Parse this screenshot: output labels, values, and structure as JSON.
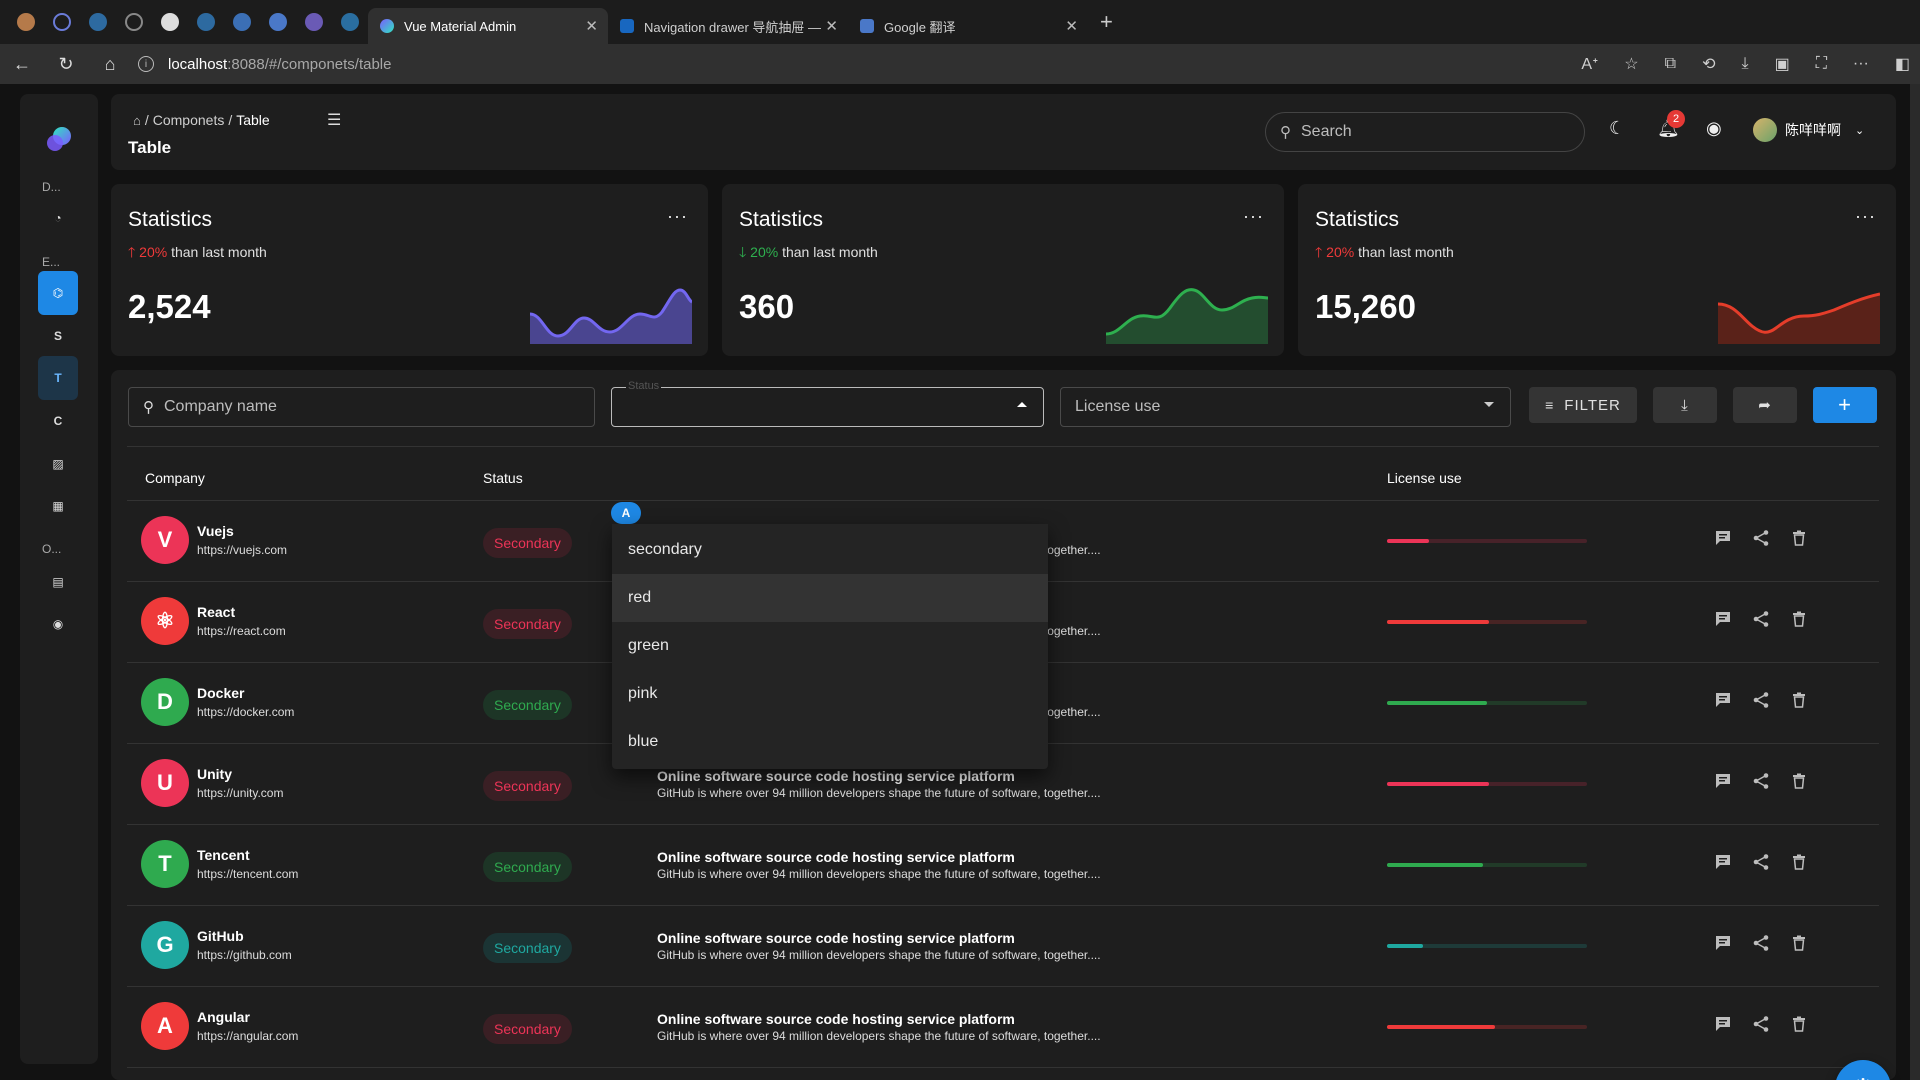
{
  "browser": {
    "tabs": [
      {
        "title": "Vue Material Admin",
        "active": true
      },
      {
        "title": "Navigation drawer 导航抽屉 —",
        "active": false
      },
      {
        "title": "Google 翻译",
        "active": false
      }
    ],
    "url_host": "localhost",
    "url_rest": ":8088/#/componets/table"
  },
  "rail": {
    "label_d": "D...",
    "label_e": "E...",
    "label_o": "O...",
    "item_s": "S",
    "item_t": "T",
    "item_c": "C"
  },
  "header": {
    "breadcrumb_sep1": "/",
    "breadcrumb_1": "Componets",
    "breadcrumb_sep2": "/",
    "breadcrumb_2": "Table",
    "title": "Table",
    "search_placeholder": "Search",
    "notification_count": "2",
    "user_name": "陈咩咩啊"
  },
  "stats": [
    {
      "title": "Statistics",
      "change": "20%",
      "direction": "up",
      "suffix": "than last month",
      "value": "2,524",
      "color": "#7367f0"
    },
    {
      "title": "Statistics",
      "change": "20%",
      "direction": "down",
      "suffix": "than last month",
      "value": "360",
      "color": "#2eb04f"
    },
    {
      "title": "Statistics",
      "change": "20%",
      "direction": "up",
      "suffix": "than last month",
      "value": "15,260",
      "color": "#e53d2a"
    }
  ],
  "toolbar": {
    "company_placeholder": "Company name",
    "status_label": "Status",
    "license_placeholder": "License use",
    "filter_label": "FILTER",
    "add_label": "+"
  },
  "table": {
    "headers": {
      "company": "Company",
      "status": "Status",
      "license": "License use"
    },
    "rows": [
      {
        "name": "Vuejs",
        "url": "https://vuejs.com",
        "status": "Secondary",
        "status_color": "red",
        "title": "Online software source code hosting service platform",
        "desc": "GitHub is where over 94 million developers shape the future of software, together....",
        "license": 0.21,
        "bar_color": "#ec3457",
        "logo_color": "#ec3457",
        "logo_letter": "V"
      },
      {
        "name": "React",
        "url": "https://react.com",
        "status": "Secondary",
        "status_color": "red",
        "title": "Online software source code hosting service platform",
        "desc": "GitHub is where over 94 million developers shape the future of software, together....",
        "license": 0.51,
        "bar_color": "#ef3a3a",
        "logo_color": "#ef3a3a",
        "logo_letter": "⚛"
      },
      {
        "name": "Docker",
        "url": "https://docker.com",
        "status": "Secondary",
        "status_color": "green",
        "title": "Online software source code hosting service platform",
        "desc": "GitHub is where over 94 million developers shape the future of software, together....",
        "license": 0.5,
        "bar_color": "#2faa4f",
        "logo_color": "#2faa4f",
        "logo_letter": "D"
      },
      {
        "name": "Unity",
        "url": "https://unity.com",
        "status": "Secondary",
        "status_color": "red",
        "title": "Online software source code hosting service platform",
        "desc": "GitHub is where over 94 million developers shape the future of software, together....",
        "license": 0.51,
        "bar_color": "#ec3457",
        "logo_color": "#ec3457",
        "logo_letter": "U"
      },
      {
        "name": "Tencent",
        "url": "https://tencent.com",
        "status": "Secondary",
        "status_color": "green",
        "title": "Online software source code hosting service platform",
        "desc": "GitHub is where over 94 million developers shape the future of software, together....",
        "license": 0.48,
        "bar_color": "#2faa4f",
        "logo_color": "#2faa4f",
        "logo_letter": "T"
      },
      {
        "name": "GitHub",
        "url": "https://github.com",
        "status": "Secondary",
        "status_color": "teal",
        "title": "Online software source code hosting service platform",
        "desc": "GitHub is where over 94 million developers shape the future of software, together....",
        "license": 0.18,
        "bar_color": "#1fa8a0",
        "logo_color": "#1fa8a0",
        "logo_letter": "G"
      },
      {
        "name": "Angular",
        "url": "https://angular.com",
        "status": "Secondary",
        "status_color": "red",
        "title": "Online software source code hosting service platform",
        "desc": "GitHub is where over 94 million developers shape the future of software, together....",
        "license": 0.54,
        "bar_color": "#ef3a3a",
        "logo_color": "#ef3a3a",
        "logo_letter": "A"
      }
    ]
  },
  "dropdown": {
    "badge": "A",
    "options": [
      "secondary",
      "red",
      "green",
      "pink",
      "blue"
    ],
    "hovered": "red"
  }
}
